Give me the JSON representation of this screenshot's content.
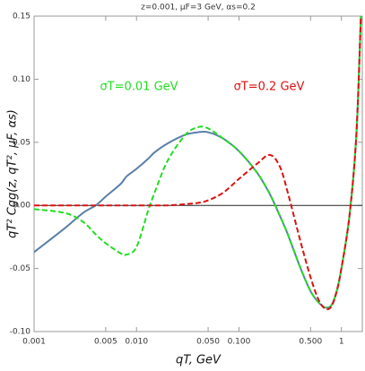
{
  "chart_data": {
    "type": "line",
    "title": "z=0.001, μF=3 GeV, αs=0.2",
    "x_label": "qT, GeV",
    "y_label": "qT² Cgg(z, qT², μF, αs)",
    "x_log": true,
    "xlim": [
      0.001,
      1.6
    ],
    "ylim": [
      -0.1,
      0.15
    ],
    "xticks": [
      0.001,
      0.005,
      {
        "value": 0.01,
        "label": "0.010"
      },
      {
        "value": 0.05,
        "label": "0.050"
      },
      {
        "value": 0.1,
        "label": "0.100"
      },
      {
        "value": 0.5,
        "label": "0.500"
      },
      1
    ],
    "yticks": [
      {
        "value": -0.1,
        "label": "-0.10"
      },
      -0.05,
      {
        "value": 0,
        "label": "0.00"
      },
      0.05,
      {
        "value": 0.1,
        "label": "0.10"
      },
      0.15
    ],
    "x": [
      0.001,
      0.002,
      0.003,
      0.004,
      0.005,
      0.007,
      0.008,
      0.01,
      0.013,
      0.015,
      0.02,
      0.03,
      0.04,
      0.05,
      0.07,
      0.1,
      0.15,
      0.2,
      0.25,
      0.3,
      0.4,
      0.5,
      0.6,
      0.7,
      0.8,
      0.9,
      1.0,
      1.2,
      1.4,
      1.55
    ],
    "series": [
      {
        "color": "#5a7fa8",
        "dashed": false,
        "values": [
          -0.037,
          -0.018,
          -0.006,
          0,
          0.007,
          0.017,
          0.023,
          0.029,
          0.037,
          0.042,
          0.049,
          0.056,
          0.058,
          0.058,
          0.053,
          0.043,
          0.026,
          0.009,
          -0.008,
          -0.023,
          -0.05,
          -0.068,
          -0.077,
          -0.081,
          -0.079,
          -0.068,
          -0.05,
          -0.008,
          0.056,
          0.15
        ]
      },
      {
        "name": "σT=0.01 GeV",
        "color": "#22dd22",
        "dashed": true,
        "values": [
          -0.003,
          -0.006,
          -0.013,
          -0.023,
          -0.03,
          -0.038,
          -0.039,
          -0.033,
          -0.004,
          0.01,
          0.035,
          0.056,
          0.062,
          0.061,
          0.053,
          0.043,
          0.026,
          0.009,
          -0.008,
          -0.023,
          -0.05,
          -0.068,
          -0.077,
          -0.081,
          -0.079,
          -0.068,
          -0.05,
          -0.008,
          0.056,
          0.15
        ]
      },
      {
        "name": "σT=0.2 GeV",
        "color": "#dd1111",
        "dashed": true,
        "values": [
          0,
          0,
          0,
          0,
          0,
          0,
          0,
          0,
          0,
          0,
          0,
          0.001,
          0.002,
          0.004,
          0.01,
          0.021,
          0.033,
          0.04,
          0.031,
          0.01,
          -0.029,
          -0.057,
          -0.075,
          -0.082,
          -0.08,
          -0.068,
          -0.05,
          -0.008,
          0.056,
          0.15
        ]
      }
    ]
  }
}
